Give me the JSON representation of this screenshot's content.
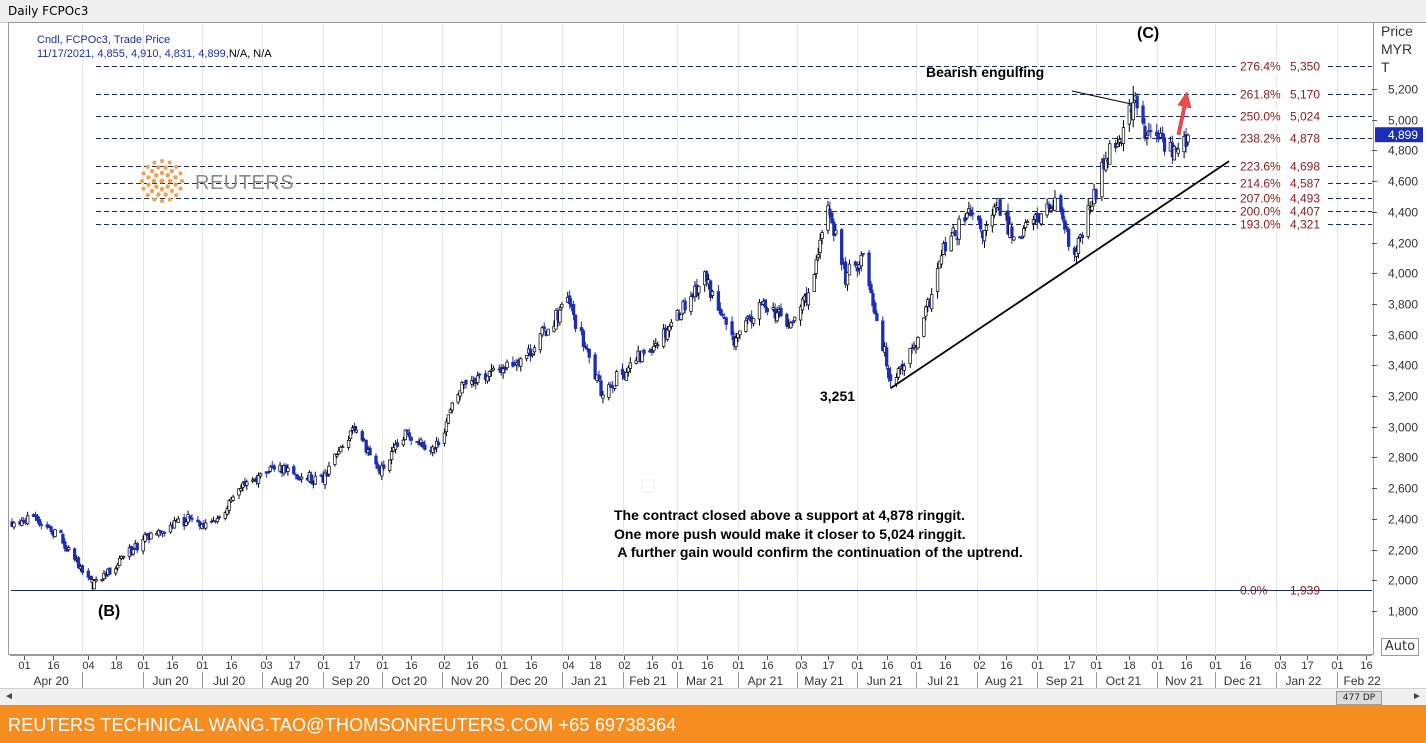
{
  "window": {
    "title": "Daily FCPOc3"
  },
  "legend": {
    "line1": "Cndl, FCPOc3, Trade Price",
    "line2_values": "11/17/2021, 4,855, 4,910, 4,831, 4,899,",
    "line2_na": "N/A, N/A"
  },
  "watermark": {
    "text": "REUTERS"
  },
  "annotations": {
    "wave_c": "(C)",
    "wave_b": "(B)",
    "bearish": "Bearish engulfing",
    "low_label": "3,251",
    "commentary": [
      "The contract closed above a support at 4,878 ringgit.",
      "One more push would make it closer to 5,024 ringgit.",
      " A further gain would confirm the continuation of the uptrend."
    ]
  },
  "axis": {
    "price_label_1": "Price",
    "price_label_2": "MYR",
    "price_label_3": "T",
    "auto": "Auto",
    "last_price": "4,899"
  },
  "scrollbar": {
    "thumb": "477 DP",
    "left": "◄",
    "right": "►"
  },
  "footer": {
    "text": "REUTERS TECHNICAL  WANG.TAO@THOMSONREUTERS.COM  +65 69738364"
  },
  "colors": {
    "up": "#ffffff",
    "down": "#1b2fb4",
    "fib": "#8b1a1a",
    "accent_arrow": "#f04a4a",
    "footer": "#f58d20"
  },
  "chart_data": {
    "type": "candlestick",
    "title": "Daily FCPOc3",
    "ylabel": "Price MYR T",
    "ylim": [
      1700,
      5500
    ],
    "y_ticks": [
      1800,
      2000,
      2200,
      2400,
      2600,
      2800,
      3000,
      3200,
      3400,
      3600,
      3800,
      4000,
      4200,
      4400,
      4600,
      4800,
      5000,
      5200
    ],
    "y_tick_labels": [
      "1,800",
      "2,000",
      "2,200",
      "2,400",
      "2,600",
      "2,800",
      "3,000",
      "3,200",
      "3,400",
      "3,600",
      "3,800",
      "4,000",
      "4,200",
      "4,400",
      "4,600",
      "4,800",
      "5,000",
      "5,200"
    ],
    "x_range": [
      "2020-03-26",
      "2022-02-18"
    ],
    "x_day_ticks": [
      {
        "d": "2020-04-01",
        "l": "01"
      },
      {
        "d": "2020-04-16",
        "l": "16"
      },
      {
        "d": "2020-05-04",
        "l": "04"
      },
      {
        "d": "2020-05-18",
        "l": "18"
      },
      {
        "d": "2020-06-01",
        "l": "01"
      },
      {
        "d": "2020-06-16",
        "l": "16"
      },
      {
        "d": "2020-07-01",
        "l": "01"
      },
      {
        "d": "2020-07-16",
        "l": "16"
      },
      {
        "d": "2020-08-03",
        "l": "03"
      },
      {
        "d": "2020-08-17",
        "l": "17"
      },
      {
        "d": "2020-09-01",
        "l": "01"
      },
      {
        "d": "2020-09-17",
        "l": "17"
      },
      {
        "d": "2020-10-01",
        "l": "01"
      },
      {
        "d": "2020-10-16",
        "l": "16"
      },
      {
        "d": "2020-11-02",
        "l": "02"
      },
      {
        "d": "2020-11-16",
        "l": "16"
      },
      {
        "d": "2020-12-01",
        "l": "01"
      },
      {
        "d": "2020-12-16",
        "l": "16"
      },
      {
        "d": "2021-01-04",
        "l": "04"
      },
      {
        "d": "2021-01-18",
        "l": "18"
      },
      {
        "d": "2021-02-02",
        "l": "02"
      },
      {
        "d": "2021-02-16",
        "l": "16"
      },
      {
        "d": "2021-03-01",
        "l": "01"
      },
      {
        "d": "2021-03-16",
        "l": "16"
      },
      {
        "d": "2021-04-01",
        "l": "01"
      },
      {
        "d": "2021-04-16",
        "l": "16"
      },
      {
        "d": "2021-05-03",
        "l": "03"
      },
      {
        "d": "2021-05-17",
        "l": "17"
      },
      {
        "d": "2021-06-01",
        "l": "01"
      },
      {
        "d": "2021-06-16",
        "l": "16"
      },
      {
        "d": "2021-07-01",
        "l": "01"
      },
      {
        "d": "2021-07-16",
        "l": "16"
      },
      {
        "d": "2021-08-02",
        "l": "02"
      },
      {
        "d": "2021-08-16",
        "l": "16"
      },
      {
        "d": "2021-09-01",
        "l": "01"
      },
      {
        "d": "2021-09-17",
        "l": "17"
      },
      {
        "d": "2021-10-01",
        "l": "01"
      },
      {
        "d": "2021-10-18",
        "l": "18"
      },
      {
        "d": "2021-11-01",
        "l": "01"
      },
      {
        "d": "2021-11-16",
        "l": "16"
      },
      {
        "d": "2021-12-01",
        "l": "01"
      },
      {
        "d": "2021-12-16",
        "l": "16"
      },
      {
        "d": "2022-01-03",
        "l": "03"
      },
      {
        "d": "2022-01-17",
        "l": "17"
      },
      {
        "d": "2022-02-01",
        "l": "01"
      },
      {
        "d": "2022-02-16",
        "l": "16"
      }
    ],
    "x_month_labels": [
      {
        "d": "2020-04-15",
        "l": "Apr 20"
      },
      {
        "d": "2020-06-15",
        "l": "Jun 20"
      },
      {
        "d": "2020-07-15",
        "l": "Jul 20"
      },
      {
        "d": "2020-08-15",
        "l": "Aug 20"
      },
      {
        "d": "2020-09-15",
        "l": "Sep 20"
      },
      {
        "d": "2020-10-15",
        "l": "Oct 20"
      },
      {
        "d": "2020-11-15",
        "l": "Nov 20"
      },
      {
        "d": "2020-12-15",
        "l": "Dec 20"
      },
      {
        "d": "2021-01-15",
        "l": "Jan 21"
      },
      {
        "d": "2021-02-14",
        "l": "Feb 21"
      },
      {
        "d": "2021-03-15",
        "l": "Mar 21"
      },
      {
        "d": "2021-04-15",
        "l": "Apr 21"
      },
      {
        "d": "2021-05-15",
        "l": "May 21"
      },
      {
        "d": "2021-06-15",
        "l": "Jun 21"
      },
      {
        "d": "2021-07-15",
        "l": "Jul 21"
      },
      {
        "d": "2021-08-15",
        "l": "Aug 21"
      },
      {
        "d": "2021-09-15",
        "l": "Sep 21"
      },
      {
        "d": "2021-10-15",
        "l": "Oct 21"
      },
      {
        "d": "2021-11-15",
        "l": "Nov 21"
      },
      {
        "d": "2021-12-15",
        "l": "Dec 21"
      },
      {
        "d": "2022-01-15",
        "l": "Jan 22"
      },
      {
        "d": "2022-02-14",
        "l": "Feb 22"
      }
    ],
    "month_boundaries": [
      "2020-05-01",
      "2020-06-01",
      "2020-07-01",
      "2020-08-01",
      "2020-09-01",
      "2020-10-01",
      "2020-11-01",
      "2020-12-01",
      "2021-01-01",
      "2021-02-01",
      "2021-03-01",
      "2021-04-01",
      "2021-05-01",
      "2021-06-01",
      "2021-07-01",
      "2021-08-01",
      "2021-09-01",
      "2021-10-01",
      "2021-11-01",
      "2021-12-01",
      "2022-01-01",
      "2022-02-01"
    ],
    "fib_levels": [
      {
        "pct": "276.4%",
        "value": 5350,
        "label": "5,350"
      },
      {
        "pct": "261.8%",
        "value": 5170,
        "label": "5,170"
      },
      {
        "pct": "250.0%",
        "value": 5024,
        "label": "5,024"
      },
      {
        "pct": "238.2%",
        "value": 4878,
        "label": "4,878"
      },
      {
        "pct": "223.6%",
        "value": 4698,
        "label": "4,698"
      },
      {
        "pct": "214.6%",
        "value": 4587,
        "label": "4,587"
      },
      {
        "pct": "207.0%",
        "value": 4493,
        "label": "4,493"
      },
      {
        "pct": "200.0%",
        "value": 4407,
        "label": "4,407"
      },
      {
        "pct": "193.0%",
        "value": 4321,
        "label": "4,321"
      },
      {
        "pct": "0.0%",
        "value": 1939,
        "label": "1,939"
      }
    ],
    "trendline": {
      "start": {
        "date": "2021-06-18",
        "price": 3251
      },
      "end": {
        "date": "2021-12-08",
        "price": 4730
      }
    },
    "key_points": {
      "wave_b": {
        "date": "2020-05-06",
        "price": 1939
      },
      "low_3251": {
        "date": "2021-06-18",
        "price": 3251
      },
      "wave_c_peak": {
        "date": "2021-10-20",
        "price": 5220
      }
    },
    "last_candle": {
      "date": "2021-11-17",
      "open": 4855,
      "high": 4910,
      "low": 4831,
      "close": 4899
    },
    "path_anchors": [
      [
        "2020-03-26",
        2380
      ],
      [
        "2020-04-06",
        2420
      ],
      [
        "2020-04-20",
        2280
      ],
      [
        "2020-05-06",
        1960
      ],
      [
        "2020-05-22",
        2150
      ],
      [
        "2020-06-05",
        2300
      ],
      [
        "2020-06-25",
        2400
      ],
      [
        "2020-07-05",
        2330
      ],
      [
        "2020-07-22",
        2600
      ],
      [
        "2020-08-05",
        2740
      ],
      [
        "2020-08-20",
        2680
      ],
      [
        "2020-08-31",
        2650
      ],
      [
        "2020-09-18",
        3000
      ],
      [
        "2020-09-30",
        2700
      ],
      [
        "2020-10-14",
        2960
      ],
      [
        "2020-10-28",
        2850
      ],
      [
        "2020-11-12",
        3300
      ],
      [
        "2020-11-27",
        3350
      ],
      [
        "2020-12-15",
        3480
      ],
      [
        "2021-01-04",
        3820
      ],
      [
        "2021-01-21",
        3230
      ],
      [
        "2021-02-04",
        3380
      ],
      [
        "2021-02-22",
        3610
      ],
      [
        "2021-03-15",
        3980
      ],
      [
        "2021-03-29",
        3550
      ],
      [
        "2021-04-15",
        3810
      ],
      [
        "2021-04-28",
        3650
      ],
      [
        "2021-05-10",
        3960
      ],
      [
        "2021-05-17",
        4460
      ],
      [
        "2021-05-26",
        3970
      ],
      [
        "2021-06-04",
        4120
      ],
      [
        "2021-06-18",
        3300
      ],
      [
        "2021-07-02",
        3550
      ],
      [
        "2021-07-15",
        4150
      ],
      [
        "2021-07-28",
        4380
      ],
      [
        "2021-08-05",
        4250
      ],
      [
        "2021-08-12",
        4440
      ],
      [
        "2021-08-20",
        4240
      ],
      [
        "2021-08-31",
        4350
      ],
      [
        "2021-09-10",
        4450
      ],
      [
        "2021-09-20",
        4100
      ],
      [
        "2021-09-30",
        4500
      ],
      [
        "2021-10-07",
        4800
      ],
      [
        "2021-10-15",
        4920
      ],
      [
        "2021-10-20",
        5150
      ],
      [
        "2021-10-26",
        4900
      ],
      [
        "2021-11-03",
        4880
      ],
      [
        "2021-11-10",
        4780
      ],
      [
        "2021-11-17",
        4899
      ]
    ]
  }
}
